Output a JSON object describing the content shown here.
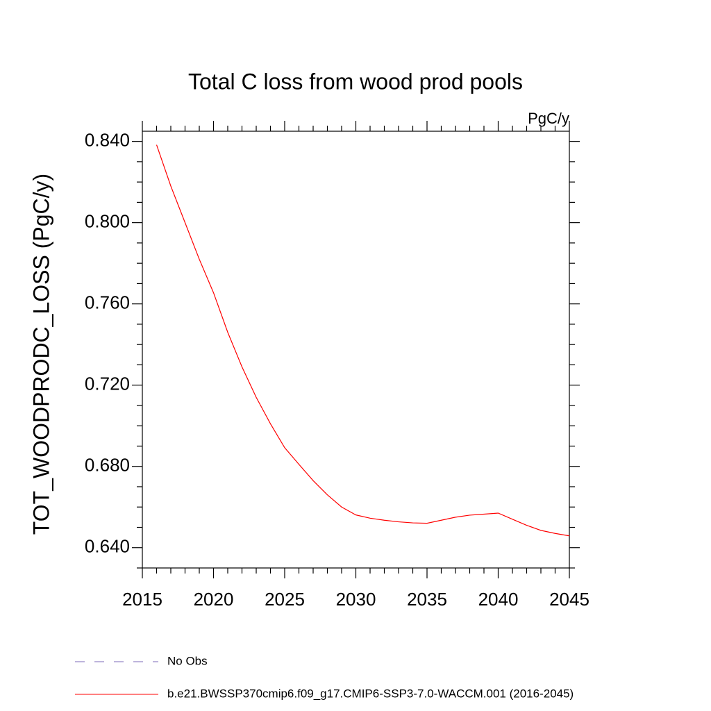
{
  "chart_data": {
    "type": "line",
    "title": "Total C loss from wood prod pools",
    "units_label": "PgC/y",
    "y_label": "TOT_WOODPRODC_LOSS  (PgC/y)",
    "x": [
      2016,
      2017,
      2018,
      2019,
      2020,
      2021,
      2022,
      2023,
      2024,
      2025,
      2026,
      2027,
      2028,
      2029,
      2030,
      2031,
      2032,
      2033,
      2034,
      2035,
      2036,
      2037,
      2038,
      2039,
      2040,
      2041,
      2042,
      2043,
      2044,
      2045
    ],
    "series": [
      {
        "name": "b.e21.BWSSP370cmip6.f09_g17.CMIP6-SSP3-7.0-WACCM.001 (2016-2045)",
        "color": "#ff0000",
        "values": [
          0.8383,
          0.818,
          0.8,
          0.782,
          0.7655,
          0.746,
          0.729,
          0.714,
          0.701,
          0.6892,
          0.681,
          0.673,
          0.666,
          0.66,
          0.6561,
          0.6545,
          0.6535,
          0.6527,
          0.6522,
          0.652,
          0.6535,
          0.655,
          0.656,
          0.6565,
          0.657,
          0.654,
          0.651,
          0.6485,
          0.647,
          0.6458
        ]
      }
    ],
    "extra_legend": {
      "name": "No Obs",
      "color": "#7b68b8",
      "style": "dashed"
    },
    "xlim": [
      2015,
      2045
    ],
    "xticks": [
      2015,
      2020,
      2025,
      2030,
      2035,
      2040,
      2045
    ],
    "xminorticks": [
      2016,
      2017,
      2018,
      2019,
      2021,
      2022,
      2023,
      2024,
      2026,
      2027,
      2028,
      2029,
      2031,
      2032,
      2033,
      2034,
      2036,
      2037,
      2038,
      2039,
      2041,
      2042,
      2043,
      2044
    ],
    "ylim": [
      0.63,
      0.845
    ],
    "yticks": [
      {
        "value": 0.64,
        "label": "0.640"
      },
      {
        "value": 0.68,
        "label": "0.680"
      },
      {
        "value": 0.72,
        "label": "0.720"
      },
      {
        "value": 0.76,
        "label": "0.760"
      },
      {
        "value": 0.8,
        "label": "0.800"
      },
      {
        "value": 0.84,
        "label": "0.840"
      }
    ],
    "yminorticks": [
      0.63,
      0.65,
      0.66,
      0.67,
      0.69,
      0.7,
      0.71,
      0.73,
      0.74,
      0.75,
      0.77,
      0.78,
      0.79,
      0.81,
      0.82,
      0.83
    ]
  }
}
